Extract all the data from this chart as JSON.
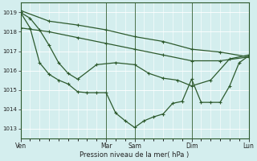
{
  "bg_color": "#d4eeee",
  "grid_color": "#ffffff",
  "line_color": "#2d5a2d",
  "xlabel": "Pression niveau de la mer( hPa )",
  "ylim": [
    1012.5,
    1019.5
  ],
  "yticks": [
    1013,
    1014,
    1015,
    1016,
    1017,
    1018,
    1019
  ],
  "xlim": [
    0,
    192
  ],
  "xtick_positions": [
    0,
    72,
    96,
    144,
    192
  ],
  "xtick_labels": [
    "Ven",
    "Mar",
    "Sam",
    "Dim",
    "Lun"
  ],
  "vlines": [
    0,
    72,
    96,
    144,
    192
  ],
  "lines": [
    {
      "x": [
        0,
        24,
        48,
        72,
        96,
        120,
        144,
        168,
        192
      ],
      "y": [
        1019.1,
        1018.55,
        1018.35,
        1018.1,
        1017.75,
        1017.5,
        1017.1,
        1016.95,
        1016.7
      ]
    },
    {
      "x": [
        0,
        24,
        48,
        72,
        96,
        120,
        144,
        168,
        192
      ],
      "y": [
        1018.2,
        1018.0,
        1017.7,
        1017.4,
        1017.1,
        1016.8,
        1016.5,
        1016.5,
        1016.7
      ]
    },
    {
      "x": [
        0,
        8,
        16,
        24,
        32,
        40,
        48,
        64,
        80,
        96,
        108,
        120,
        132,
        144,
        160,
        176,
        192
      ],
      "y": [
        1019.0,
        1018.7,
        1018.1,
        1017.3,
        1016.4,
        1015.85,
        1015.55,
        1016.3,
        1016.4,
        1016.3,
        1015.85,
        1015.6,
        1015.5,
        1015.2,
        1015.5,
        1016.6,
        1016.8
      ]
    },
    {
      "x": [
        0,
        8,
        16,
        24,
        32,
        40,
        48,
        56,
        64,
        72,
        80,
        88,
        96,
        104,
        112,
        120,
        128,
        136,
        144,
        152,
        160,
        168,
        176,
        184,
        192
      ],
      "y": [
        1019.0,
        1018.2,
        1016.4,
        1015.8,
        1015.5,
        1015.3,
        1014.9,
        1014.85,
        1014.85,
        1014.85,
        1013.8,
        1013.4,
        1013.05,
        1013.4,
        1013.6,
        1013.75,
        1014.3,
        1014.4,
        1015.55,
        1014.35,
        1014.35,
        1014.35,
        1015.2,
        1016.4,
        1016.75
      ]
    }
  ]
}
